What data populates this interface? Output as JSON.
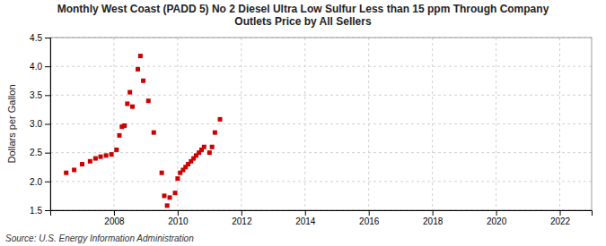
{
  "chart_data": {
    "type": "scatter",
    "title": "Monthly West Coast (PADD 5) No 2 Diesel Ultra Low Sulfur Less than 15 ppm Through Company\nOutlets Price by All Sellers",
    "ylabel": "Dollars per Gallon",
    "annotation": "Source: U.S. Energy Information Administration",
    "color": "#cc0000",
    "marker": "square",
    "grid": true,
    "xlim": [
      2006.0,
      2023.0
    ],
    "ylim": [
      1.5,
      4.5
    ],
    "xticks": [
      2008,
      2010,
      2012,
      2014,
      2016,
      2018,
      2020,
      2022
    ],
    "yticks": [
      1.5,
      {
        "value": 2.0,
        "label": "2.0"
      },
      2.5,
      {
        "value": 3.0,
        "label": "3.0"
      },
      3.5,
      {
        "value": 4.0,
        "label": "4.0"
      },
      4.5
    ],
    "x": [
      2006.5,
      2006.75,
      2007.0,
      2007.25,
      2007.42,
      2007.58,
      2007.75,
      2007.92,
      2008.08,
      2008.17,
      2008.25,
      2008.33,
      2008.42,
      2008.5,
      2008.58,
      2008.75,
      2008.83,
      2008.92,
      2009.08,
      2009.25,
      2009.5,
      2009.58,
      2009.67,
      2009.75,
      2009.92,
      2010.0,
      2010.08,
      2010.17,
      2010.25,
      2010.33,
      2010.42,
      2010.5,
      2010.58,
      2010.67,
      2010.75,
      2010.83,
      2011.0,
      2011.08,
      2011.17,
      2011.33
    ],
    "values": [
      2.15,
      2.2,
      2.3,
      2.35,
      2.4,
      2.43,
      2.45,
      2.47,
      2.55,
      2.8,
      2.95,
      2.97,
      3.35,
      3.55,
      3.3,
      3.95,
      4.18,
      3.75,
      3.4,
      2.85,
      2.15,
      1.75,
      1.58,
      1.72,
      1.8,
      2.05,
      2.15,
      2.2,
      2.25,
      2.3,
      2.35,
      2.4,
      2.45,
      2.5,
      2.55,
      2.6,
      2.5,
      2.6,
      2.85,
      3.08
    ]
  }
}
